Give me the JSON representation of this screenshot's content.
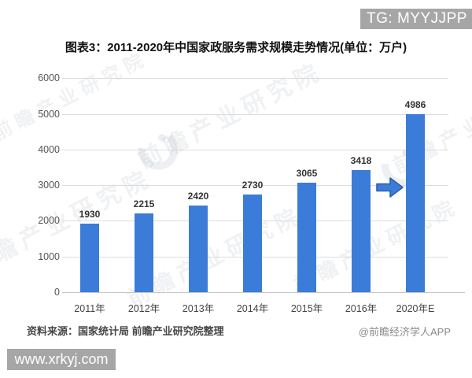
{
  "banners": {
    "top_right": "TG: MYYJJPP",
    "bottom_left": "www.xrkyj.com",
    "background": "#a6a6a6",
    "text_color": "#ffffff"
  },
  "title": "图表3：2011-2020年中国家政服务需求规模走势情况(单位：万户)",
  "chart_data": {
    "type": "bar",
    "title": "图表3：2011-2020年中国家政服务需求规模走势情况(单位：万户)",
    "unit": "万户",
    "categories": [
      "2011年",
      "2012年",
      "2013年",
      "2014年",
      "2015年",
      "2016年",
      "2020年E"
    ],
    "values": [
      1930,
      2215,
      2420,
      2730,
      3065,
      3418,
      4986
    ],
    "yticks": [
      0,
      1000,
      2000,
      3000,
      4000,
      5000,
      6000
    ],
    "ylim": [
      0,
      6000
    ],
    "grid": true,
    "legend": "none",
    "annotations": [
      "blue right arrow between 2016年 and 2020年E"
    ],
    "bar_color": "#3b7cd8"
  },
  "colors": {
    "bar": "#3b7cd8",
    "arrow_fill": "#3b7cd8",
    "arrow_stroke": "#2a60b2",
    "gridline": "#dcdcdc",
    "axisline": "#c6c6c6"
  },
  "footer": {
    "source": "资料来源：国家统计局 前瞻产业研究院整理",
    "credit": "@前瞻经济学人APP"
  },
  "watermark": {
    "text": "前瞻产业研究院"
  }
}
